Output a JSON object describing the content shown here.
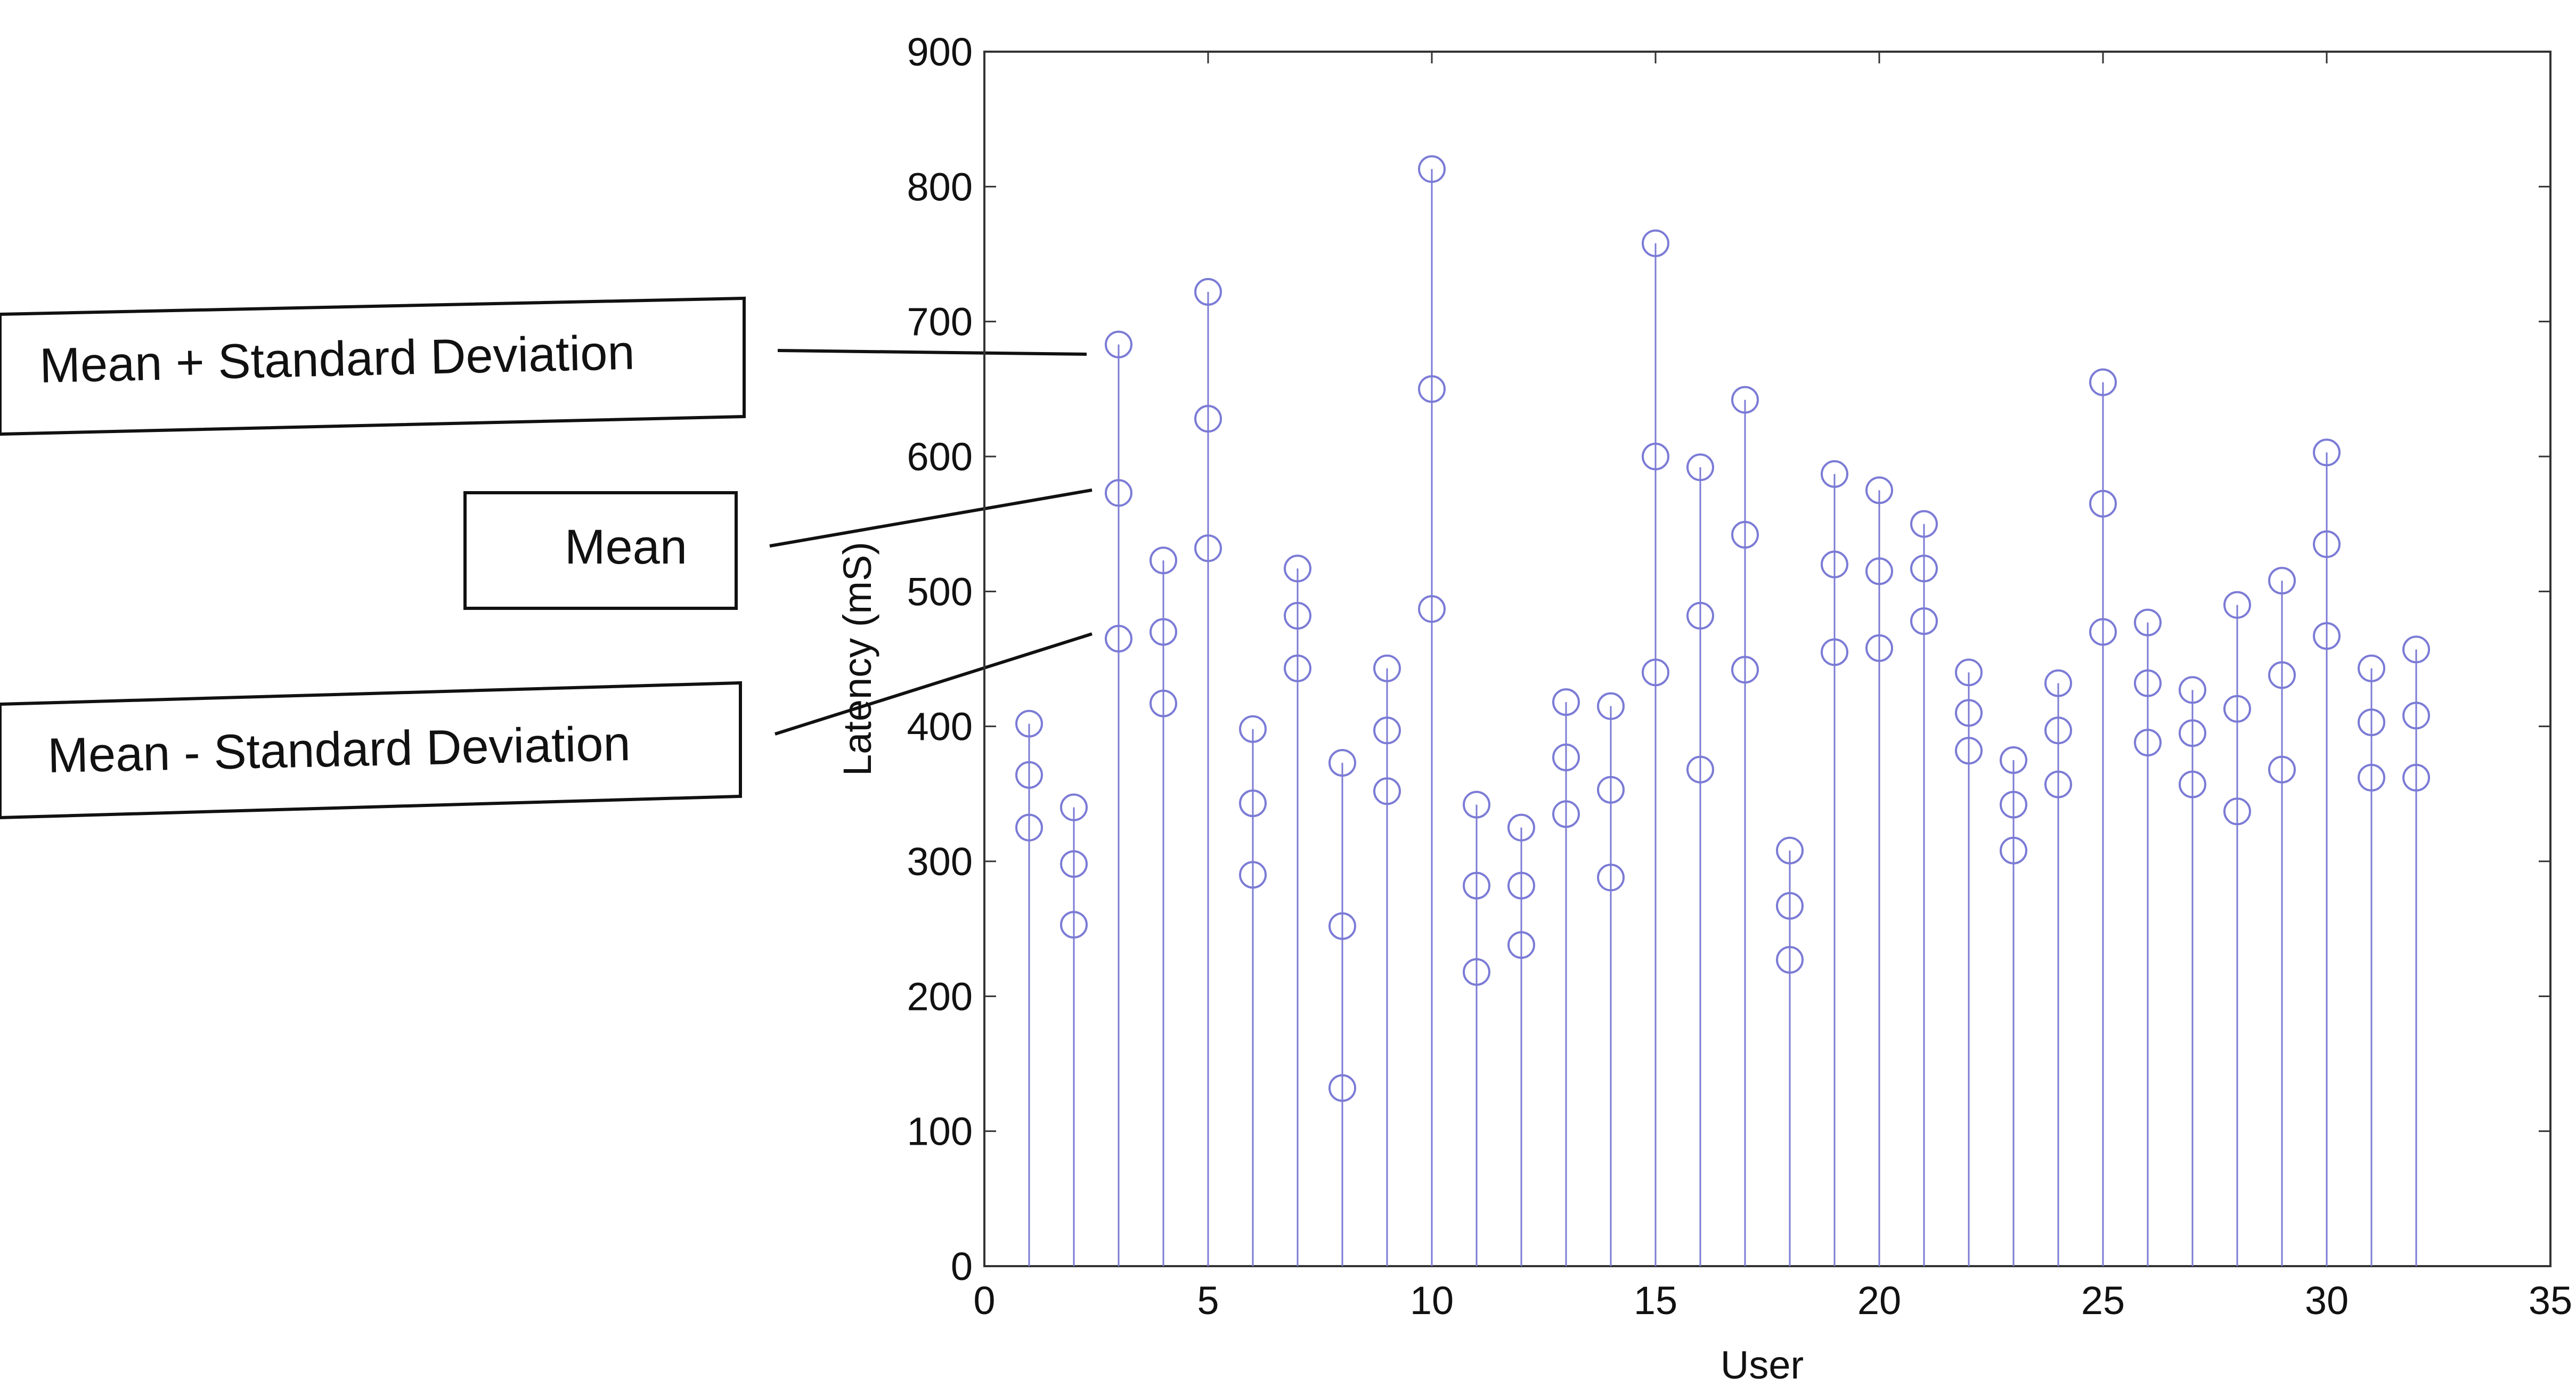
{
  "callouts": {
    "upper": "Mean + Standard Deviation",
    "mean": "Mean",
    "lower": "Mean - Standard Deviation"
  },
  "chart_data": {
    "type": "scatter",
    "style": "stem",
    "marker": "circle",
    "color": "#7b7bd6",
    "title": "",
    "xlabel": "User",
    "ylabel": "Latency (mS)",
    "xlim": [
      0,
      35
    ],
    "ylim": [
      0,
      900
    ],
    "xticks": [
      0,
      5,
      10,
      15,
      20,
      25,
      30,
      35
    ],
    "yticks": [
      0,
      100,
      200,
      300,
      400,
      500,
      600,
      700,
      800,
      900
    ],
    "grid": false,
    "x": [
      1,
      2,
      3,
      4,
      5,
      6,
      7,
      8,
      9,
      10,
      11,
      12,
      13,
      14,
      15,
      16,
      17,
      18,
      19,
      20,
      21,
      22,
      23,
      24,
      25,
      26,
      27,
      28,
      29,
      30,
      31,
      32
    ],
    "series": [
      {
        "name": "Mean + Standard Deviation",
        "values": [
          402,
          340,
          683,
          523,
          722,
          398,
          517,
          373,
          443,
          813,
          342,
          325,
          418,
          415,
          758,
          592,
          642,
          308,
          587,
          575,
          550,
          440,
          375,
          432,
          655,
          477,
          427,
          490,
          508,
          603,
          443,
          457
        ]
      },
      {
        "name": "Mean",
        "values": [
          364,
          298,
          573,
          470,
          628,
          343,
          482,
          252,
          397,
          650,
          282,
          282,
          377,
          353,
          600,
          482,
          542,
          267,
          520,
          515,
          517,
          410,
          342,
          397,
          565,
          432,
          395,
          413,
          438,
          535,
          403,
          408
        ]
      },
      {
        "name": "Mean - Standard Deviation",
        "values": [
          325,
          253,
          465,
          417,
          532,
          290,
          443,
          132,
          352,
          487,
          218,
          238,
          335,
          288,
          440,
          368,
          442,
          227,
          455,
          458,
          478,
          382,
          308,
          357,
          470,
          388,
          357,
          337,
          368,
          467,
          362,
          362
        ]
      }
    ]
  }
}
